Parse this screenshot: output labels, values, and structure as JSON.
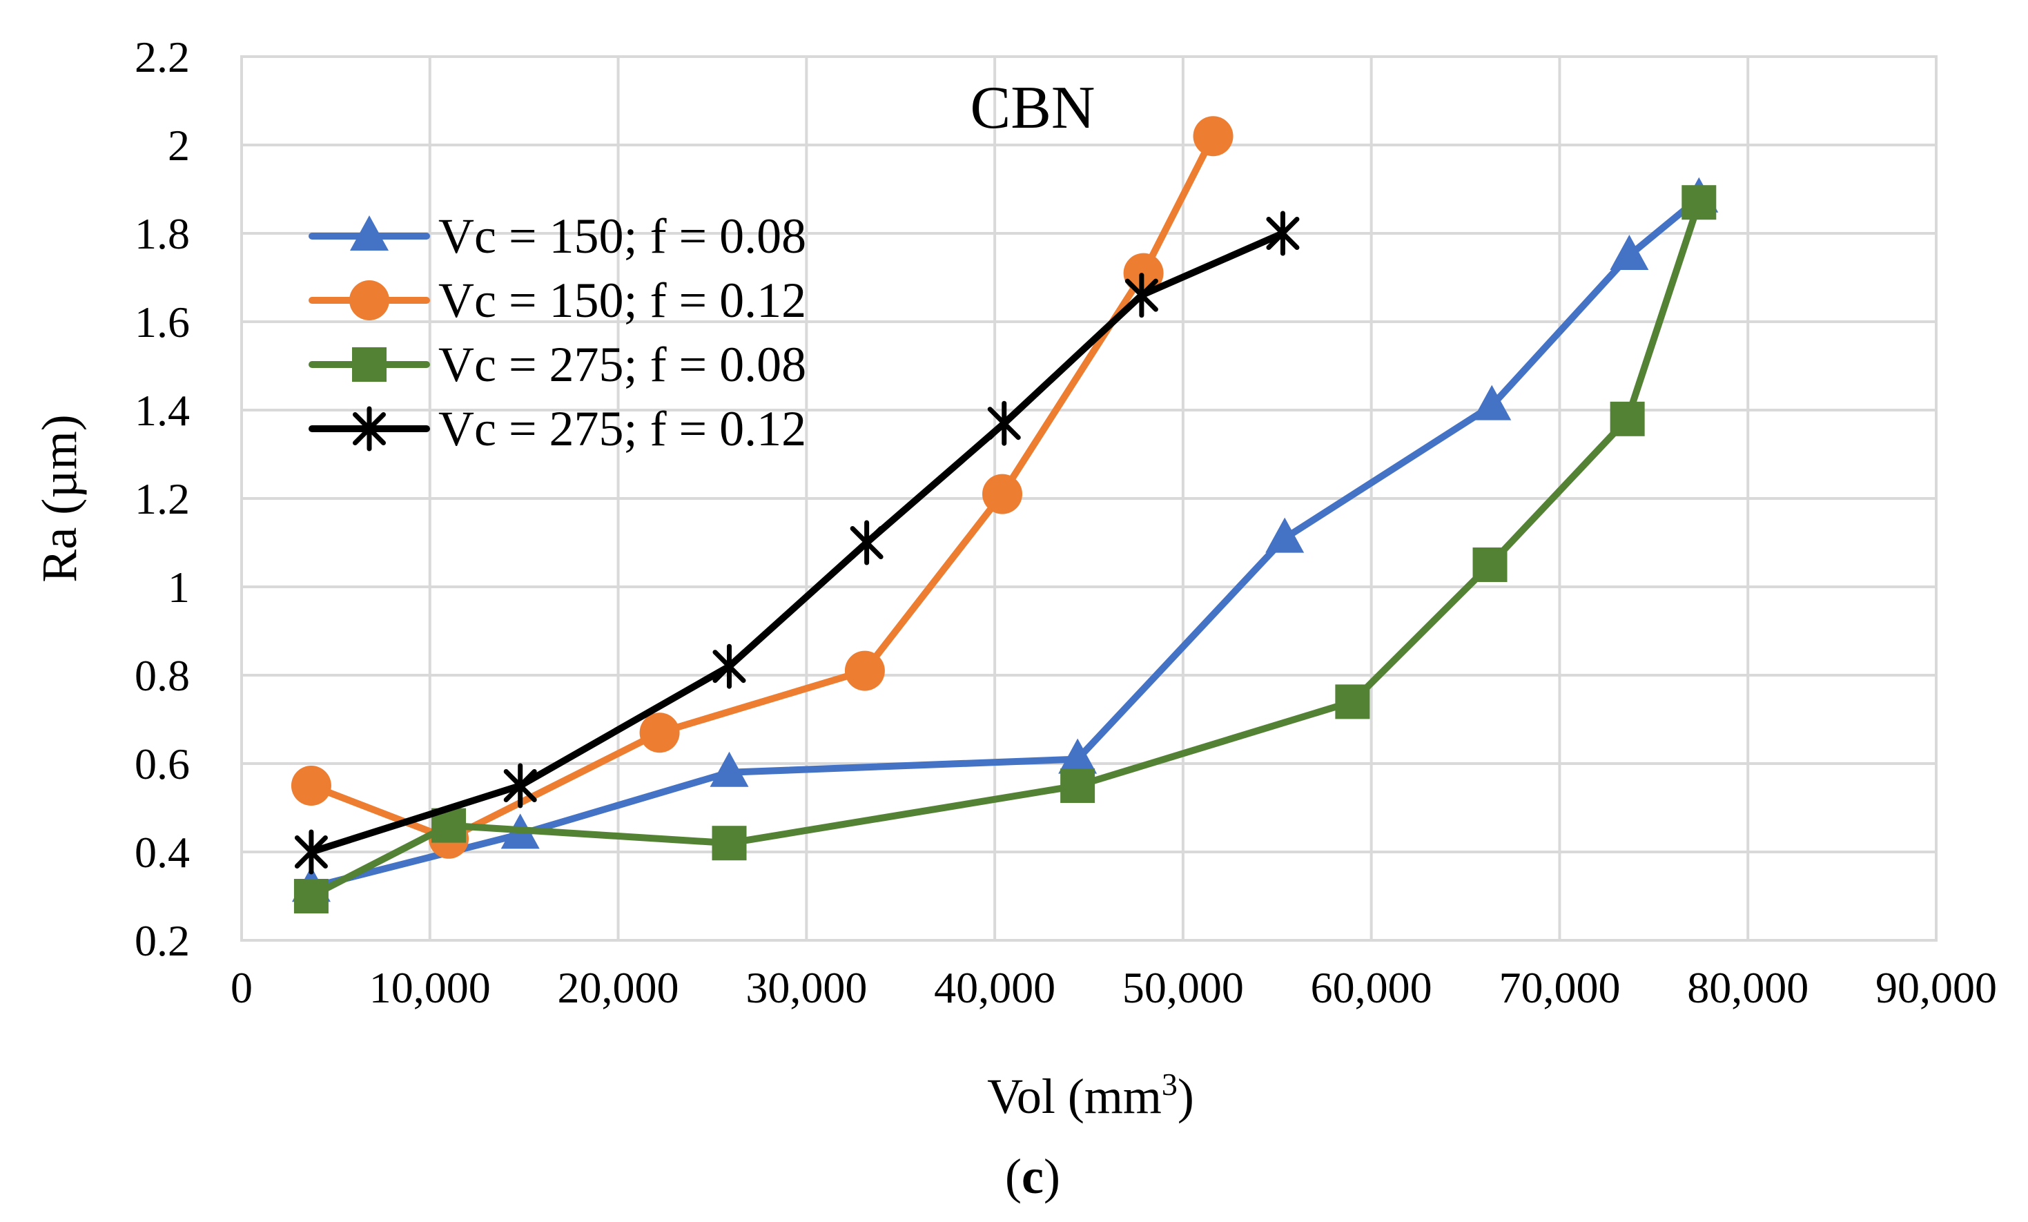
{
  "chart_data": {
    "type": "line",
    "title": "CBN",
    "xlabel": "Vol (mm",
    "xlabel_sup": "3",
    "xlabel_close": ")",
    "ylabel": "Ra  (µm)",
    "caption_open": "(",
    "caption_letter": "c",
    "caption_close": ")",
    "xlim": [
      0,
      90000
    ],
    "ylim": [
      0.2,
      2.2
    ],
    "x_tick_labels": [
      "0",
      "10,000",
      "20,000",
      "30,000",
      "40,000",
      "50,000",
      "60,000",
      "70,000",
      "80,000",
      "90,000"
    ],
    "y_tick_labels": [
      "0.2",
      "0.4",
      "0.6",
      "0.8",
      "1",
      "1.2",
      "1.4",
      "1.6",
      "1.8",
      "2",
      "2.2"
    ],
    "grid": true,
    "legend_position": "top-left",
    "series": [
      {
        "name": "Vc = 150; f = 0.08",
        "color": "#4472C4",
        "marker": "triangle",
        "x": [
          3700,
          14800,
          25900,
          44400,
          55400,
          66400,
          73700,
          77400
        ],
        "y": [
          0.32,
          0.44,
          0.58,
          0.61,
          1.11,
          1.41,
          1.75,
          1.88
        ]
      },
      {
        "name": "Vc = 150; f = 0.12",
        "color": "#ED7D31",
        "marker": "circle",
        "x": [
          3700,
          11000,
          22200,
          33100,
          40400,
          47900,
          51600
        ],
        "y": [
          0.55,
          0.43,
          0.67,
          0.81,
          1.21,
          1.71,
          2.02
        ]
      },
      {
        "name": "Vc = 275; f = 0.08",
        "color": "#548235",
        "marker": "square",
        "x": [
          3700,
          11000,
          25900,
          44400,
          59000,
          66300,
          73600,
          77400
        ],
        "y": [
          0.3,
          0.46,
          0.42,
          0.55,
          0.74,
          1.05,
          1.38,
          1.87
        ]
      },
      {
        "name": "Vc = 275; f = 0.12",
        "color": "#000000",
        "marker": "asterisk",
        "x": [
          3700,
          14800,
          25900,
          33200,
          40500,
          47800,
          55300
        ],
        "y": [
          0.4,
          0.55,
          0.82,
          1.1,
          1.37,
          1.66,
          1.8
        ]
      }
    ]
  }
}
